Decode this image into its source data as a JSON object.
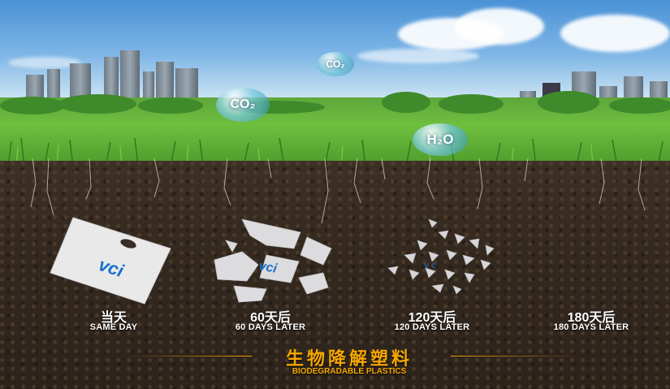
{
  "scene": {
    "bubbles": {
      "co2_small": "CO₂",
      "co2_large": "CO₂",
      "h2o": "H₂O"
    },
    "bag_brand": "vci",
    "stages": [
      {
        "cn": "当天",
        "en": "SAME DAY"
      },
      {
        "cn": "60天后",
        "en": "60 DAYS LATER"
      },
      {
        "cn": "120天后",
        "en": "120 DAYS LATER"
      },
      {
        "cn": "180天后",
        "en": "180 DAYS LATER"
      }
    ],
    "footer": {
      "cn": "生物降解塑料",
      "en": "BIODEGRADABLE PLASTICS"
    },
    "colors": {
      "accent": "#f6a800",
      "brand_blue": "#1a6fd0"
    }
  }
}
